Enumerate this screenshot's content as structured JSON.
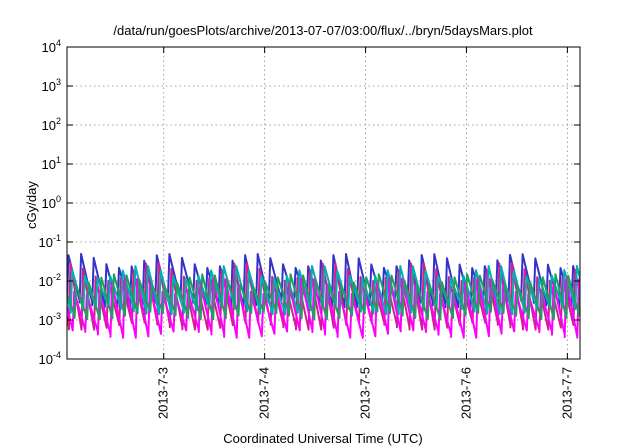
{
  "chart_data": {
    "type": "line",
    "title": "/data/run/goesPlots/archive/2013-07-07/03:00/flux/../bryn/5daysMars.plot",
    "xlabel": "Coordinated Universal Time (UTC)",
    "ylabel": "cGy/day",
    "y_scale": "log",
    "ylim": [
      0.0001,
      10000
    ],
    "y_ticks": [
      {
        "exp": "-4",
        "value": 0.0001
      },
      {
        "exp": "-3",
        "value": 0.001
      },
      {
        "exp": "-2",
        "value": 0.01
      },
      {
        "exp": "-1",
        "value": 0.1
      },
      {
        "exp": "0",
        "value": 1
      },
      {
        "exp": "1",
        "value": 10
      },
      {
        "exp": "2",
        "value": 100
      },
      {
        "exp": "3",
        "value": 1000
      },
      {
        "exp": "4",
        "value": 10000
      }
    ],
    "y_tick_base": "10",
    "xlim": [
      "2013-07-02 01:00",
      "2013-07-07 03:00"
    ],
    "x_ticks": [
      "2013-7-3",
      "2013-7-4",
      "2013-7-5",
      "2013-7-6",
      "2013-7-7"
    ],
    "grid": true,
    "legend": "none",
    "cycle_hours": 3,
    "series": [
      {
        "color": "#3333cc",
        "peak_cGy_day": 0.05,
        "trough_cGy_day": 0.003
      },
      {
        "color": "#d02090",
        "peak_cGy_day": 0.03,
        "trough_cGy_day": 0.0008
      },
      {
        "color": "#00b0b0",
        "peak_cGy_day": 0.025,
        "trough_cGy_day": 0.002
      },
      {
        "color": "#ff00ff",
        "peak_cGy_day": 0.012,
        "trough_cGy_day": 0.0005
      },
      {
        "color": "#20a060",
        "peak_cGy_day": 0.015,
        "trough_cGy_day": 0.0015
      }
    ]
  }
}
